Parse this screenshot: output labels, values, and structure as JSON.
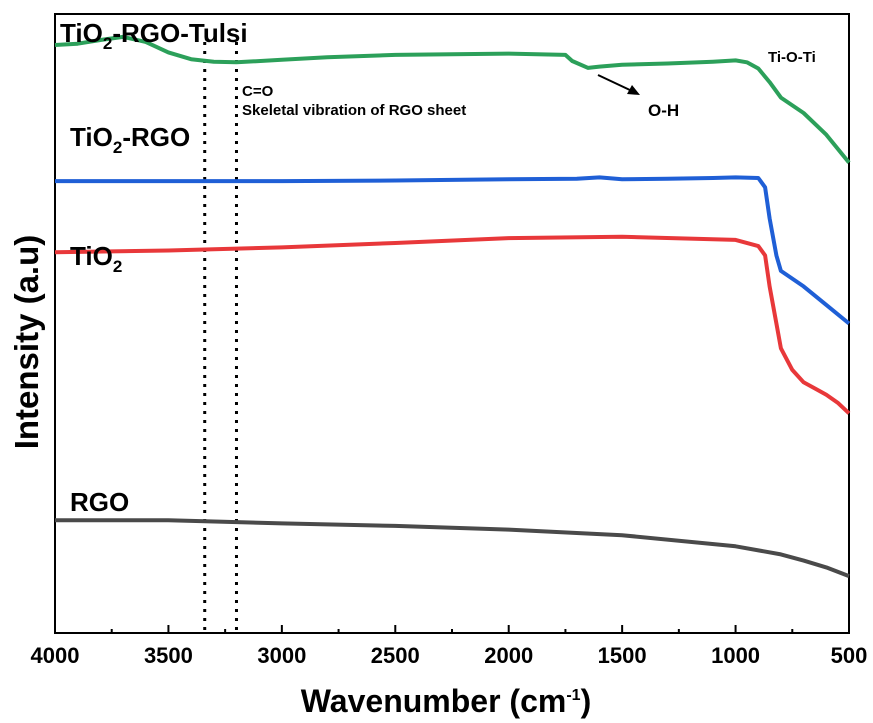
{
  "chart_data": {
    "type": "line",
    "title": "",
    "xlabel": "Wavenumber (cm",
    "xlabel_sup": "-1",
    "xlabel_close": ")",
    "ylabel": "Intensity (a.u)",
    "xlim": [
      4000,
      500
    ],
    "x_reversed": true,
    "xticks": [
      4000,
      3500,
      3000,
      2500,
      2000,
      1500,
      1000,
      500
    ],
    "ylim": [
      0,
      100
    ],
    "y_ticks_shown": false,
    "grid": false,
    "legend": "none",
    "series": [
      {
        "label_main": "TiO",
        "label_sub": "2",
        "label_rest": "-RGO-Tulsi",
        "color": "#2ca05a",
        "x": [
          4000,
          3900,
          3800,
          3700,
          3600,
          3500,
          3400,
          3300,
          3200,
          3000,
          2800,
          2500,
          2000,
          1750,
          1720,
          1650,
          1600,
          1500,
          1300,
          1100,
          1000,
          950,
          900,
          850,
          800,
          700,
          600,
          500
        ],
        "y": [
          95.0,
          95.2,
          95.8,
          96.3,
          95.5,
          93.8,
          92.7,
          92.3,
          92.2,
          92.6,
          93.0,
          93.4,
          93.6,
          93.4,
          92.4,
          91.3,
          91.5,
          91.8,
          92.0,
          92.3,
          92.5,
          92.2,
          91.2,
          89.0,
          86.5,
          84.0,
          80.5,
          76.0
        ]
      },
      {
        "label_main": "TiO",
        "label_sub": "2",
        "label_rest": "-RGO",
        "color": "#1f5fd6",
        "x": [
          4000,
          3500,
          3000,
          2500,
          2000,
          1700,
          1600,
          1500,
          1300,
          1100,
          1000,
          900,
          870,
          850,
          820,
          800,
          700,
          600,
          500
        ],
        "y": [
          73.0,
          73.0,
          73.0,
          73.1,
          73.3,
          73.4,
          73.6,
          73.3,
          73.4,
          73.5,
          73.6,
          73.5,
          72.0,
          67.0,
          61.0,
          58.5,
          56.0,
          53.0,
          50.0
        ]
      },
      {
        "label_main": "TiO",
        "label_sub": "2",
        "label_rest": "",
        "color": "#e8383a",
        "x": [
          4000,
          3500,
          3000,
          2500,
          2000,
          1500,
          1000,
          900,
          870,
          850,
          820,
          800,
          750,
          700,
          650,
          600,
          550,
          500
        ],
        "y": [
          61.5,
          61.8,
          62.3,
          63.0,
          63.8,
          64.0,
          63.5,
          62.5,
          61.0,
          56.0,
          50.0,
          46.0,
          42.5,
          40.5,
          39.5,
          38.5,
          37.2,
          35.5
        ]
      },
      {
        "label_main": "RGO",
        "label_sub": "",
        "label_rest": "",
        "color": "#4a4a4a",
        "x": [
          4000,
          3500,
          3000,
          2500,
          2000,
          1500,
          1000,
          800,
          700,
          600,
          500
        ],
        "y": [
          18.2,
          18.2,
          17.7,
          17.3,
          16.7,
          15.8,
          14.0,
          12.7,
          11.7,
          10.6,
          9.2
        ]
      }
    ],
    "vertical_dotted_lines_x": [
      3340,
      3200
    ],
    "annotations": {
      "co": "C=O",
      "skeletal": "Skeletal vibration of RGO sheet",
      "oh": "O-H",
      "tioti": "Ti-O-Ti"
    }
  }
}
